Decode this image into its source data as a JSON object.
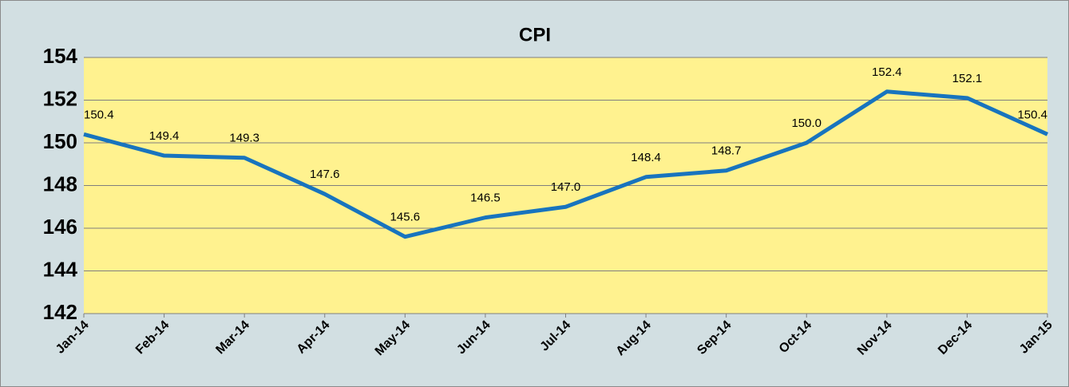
{
  "chart_data": {
    "type": "line",
    "title": "CPI",
    "categories": [
      "Jan-14",
      "Feb-14",
      "Mar-14",
      "Apr-14",
      "May-14",
      "Jun-14",
      "Jul-14",
      "Aug-14",
      "Sep-14",
      "Oct-14",
      "Nov-14",
      "Dec-14",
      "Jan-15"
    ],
    "series": [
      {
        "name": "CPI",
        "color": "#1874be",
        "values": [
          150.4,
          149.4,
          149.3,
          147.6,
          145.6,
          146.5,
          147.0,
          148.4,
          148.7,
          150.0,
          152.4,
          152.1,
          150.4
        ],
        "value_labels": [
          "150.4",
          "149.4",
          "149.3",
          "147.6",
          "145.6",
          "146.5",
          "147.0",
          "148.4",
          "148.7",
          "150.0",
          "152.4",
          "152.1",
          "150.4"
        ]
      }
    ],
    "ylim": [
      142,
      154
    ],
    "yticks": [
      142,
      144,
      146,
      148,
      150,
      152,
      154
    ],
    "grid": true
  }
}
